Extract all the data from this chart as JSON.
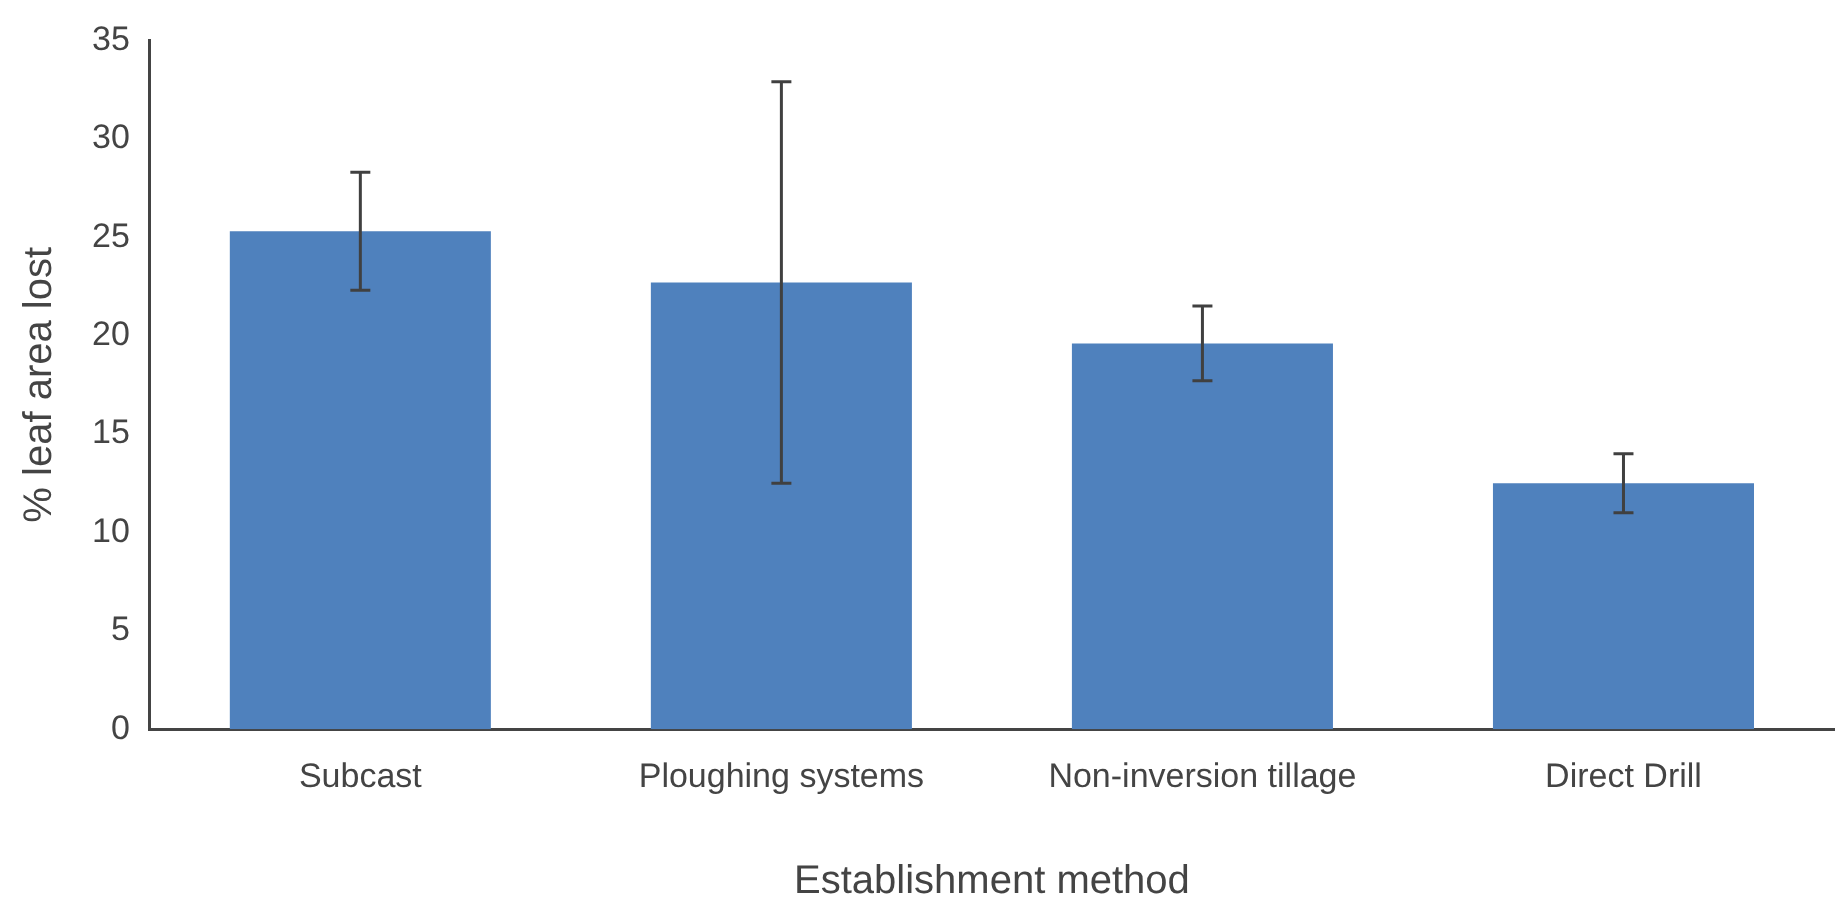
{
  "chart_data": {
    "type": "bar",
    "xlabel": "Establishment method",
    "ylabel": "% leaf area lost",
    "categories": [
      "Subcast",
      "Ploughing systems",
      "Non-inversion tillage",
      "Direct Drill"
    ],
    "values": [
      25.3,
      22.7,
      19.6,
      12.5
    ],
    "errors": [
      3.0,
      10.2,
      1.9,
      1.5
    ],
    "color": "#4f81bd",
    "ylim": [
      0,
      35
    ],
    "yticks": [
      0,
      5,
      10,
      15,
      20,
      25,
      30,
      35
    ],
    "grid": false,
    "legend": false
  }
}
